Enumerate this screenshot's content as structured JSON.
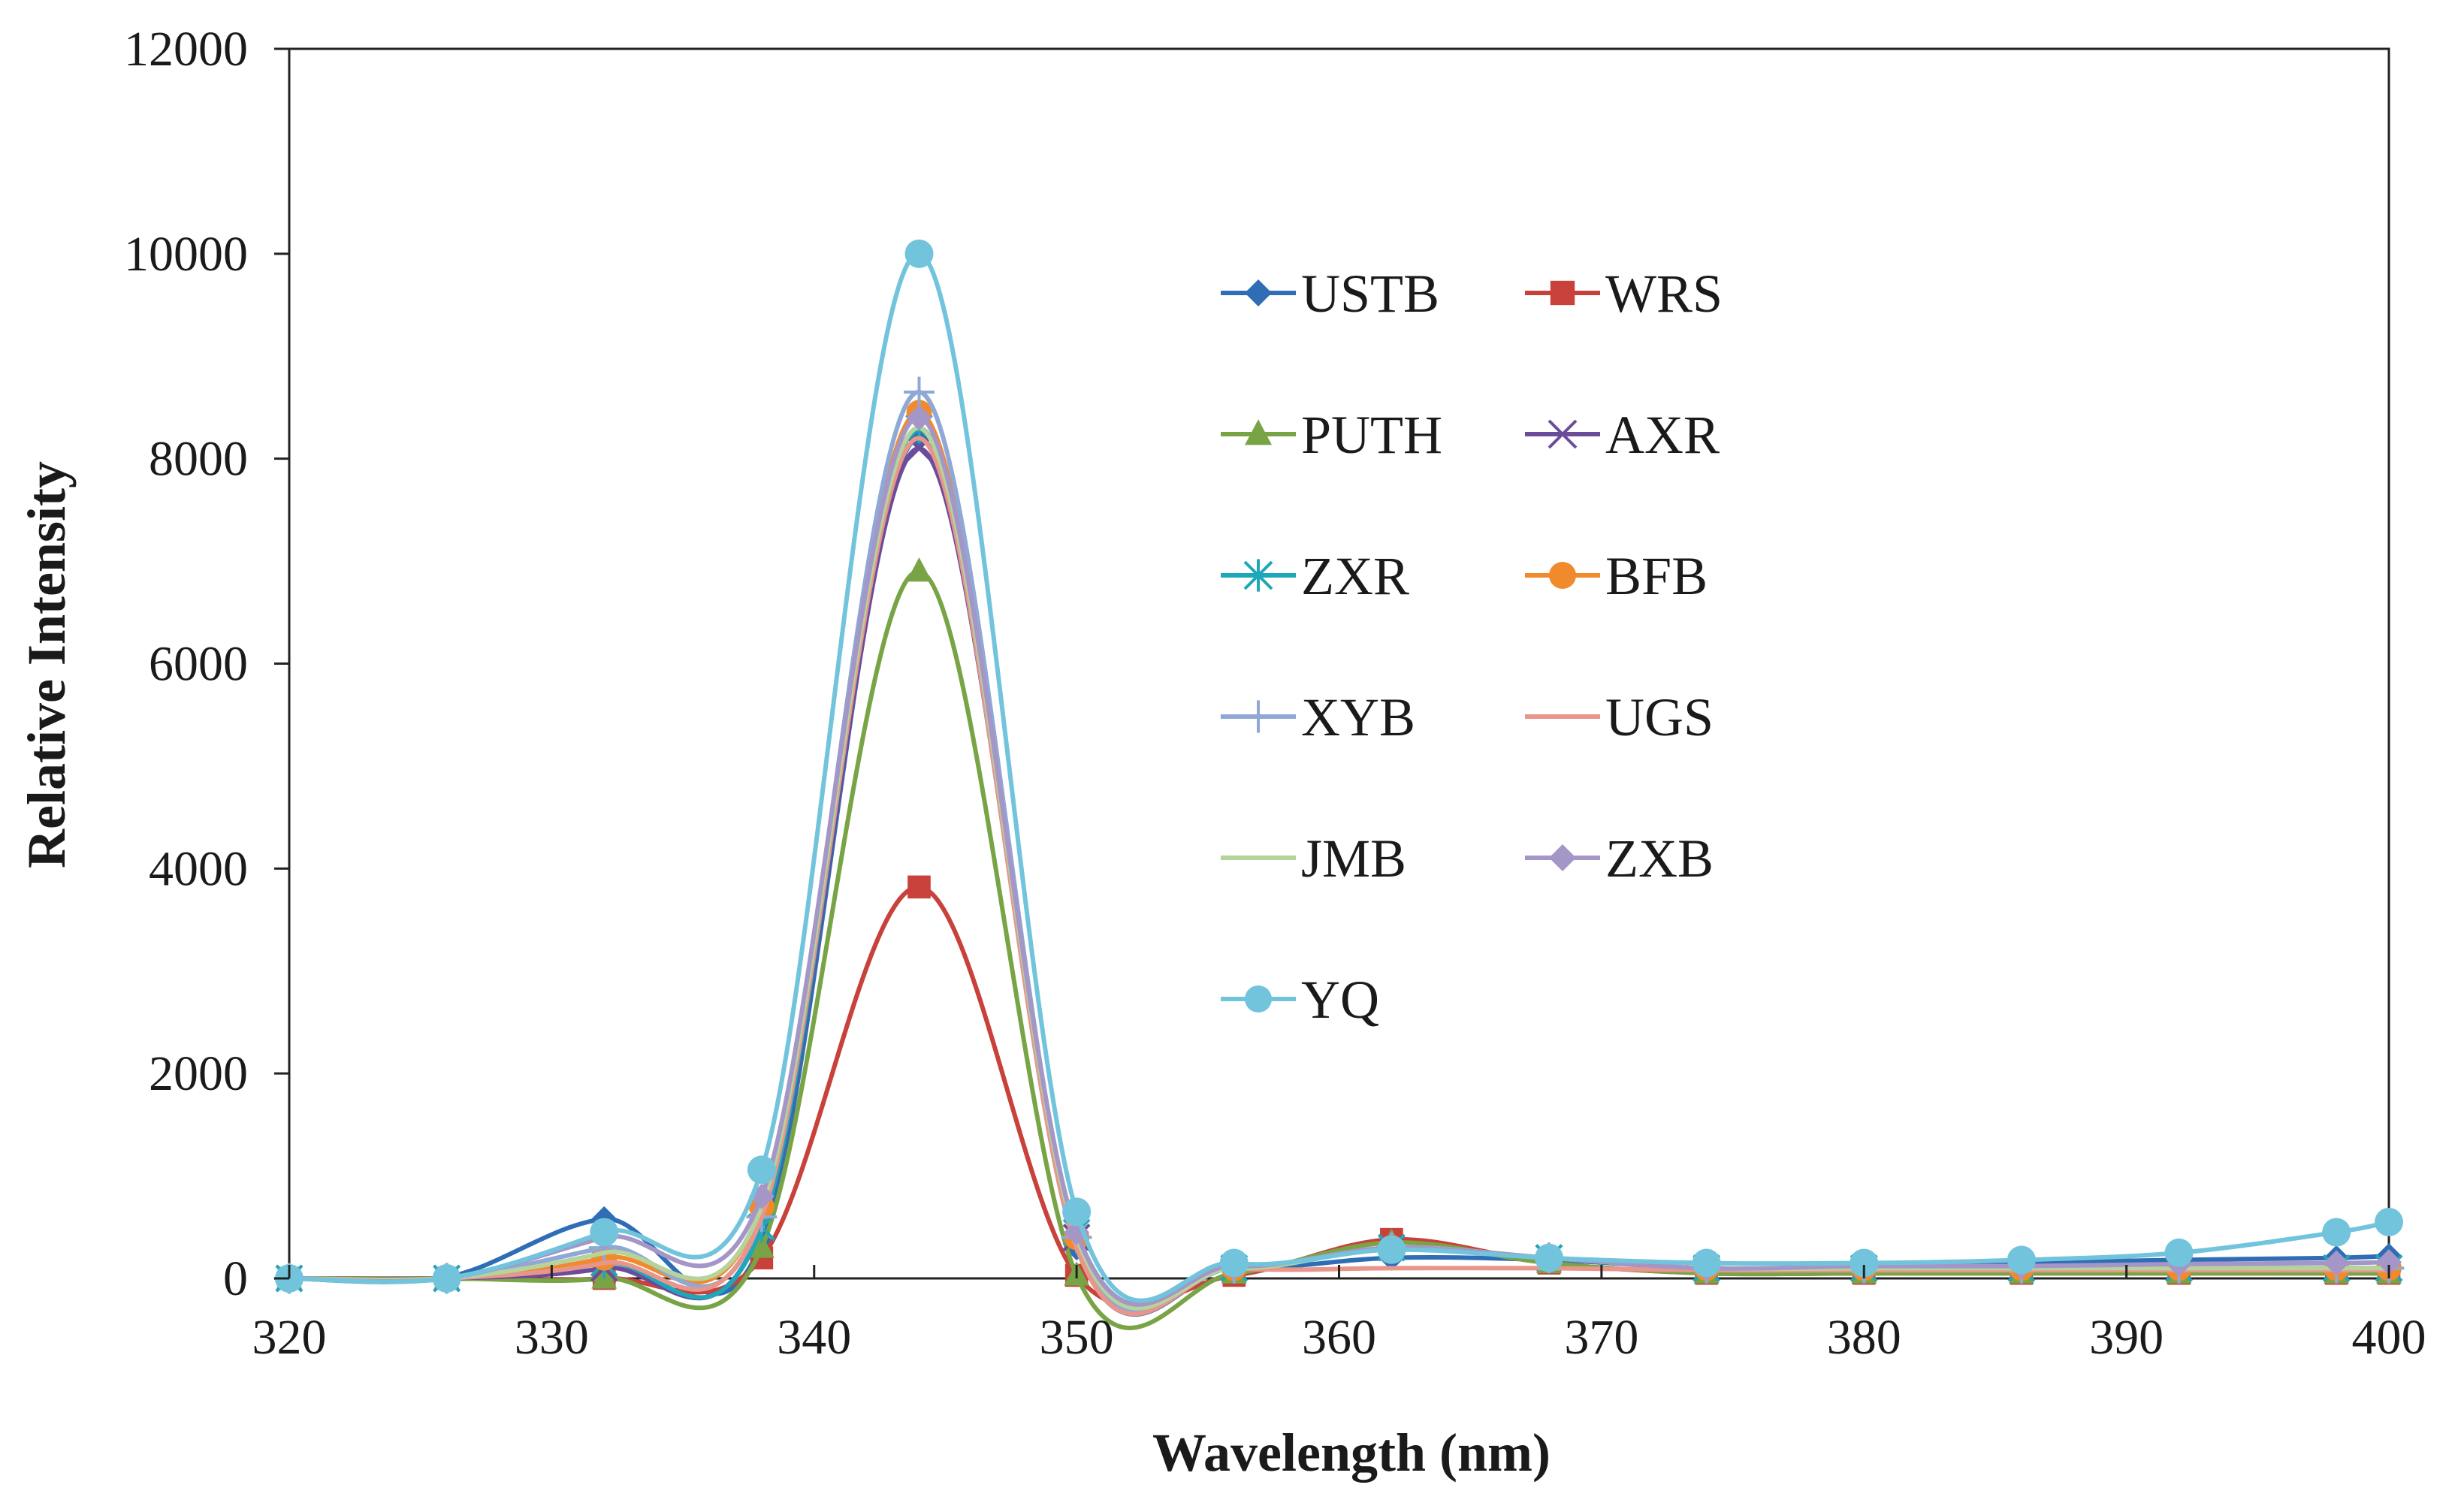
{
  "chart_data": {
    "type": "line",
    "title": "",
    "xlabel": "Wavelength (nm)",
    "ylabel": "Relative Intensity",
    "xlim": [
      320,
      400
    ],
    "ylim": [
      0,
      12000
    ],
    "x_ticks": [
      "320",
      "330",
      "340",
      "350",
      "360",
      "370",
      "380",
      "390",
      "400"
    ],
    "y_ticks": [
      "0",
      "2000",
      "4000",
      "6000",
      "8000",
      "10000",
      "12000"
    ],
    "grid": false,
    "legend_position": "inside-top-center",
    "x": [
      320,
      326,
      332,
      338,
      344,
      350,
      356,
      362,
      368,
      374,
      380,
      386,
      392,
      398,
      400
    ],
    "series": [
      {
        "name": "USTB",
        "color": "#2f6eb5",
        "marker": "diamond",
        "values": [
          0,
          10,
          580,
          350,
          8200,
          300,
          100,
          200,
          180,
          100,
          100,
          150,
          180,
          200,
          220
        ]
      },
      {
        "name": "WRS",
        "color": "#c8413b",
        "marker": "square",
        "values": [
          0,
          0,
          0,
          200,
          3820,
          30,
          30,
          380,
          150,
          50,
          50,
          50,
          50,
          50,
          50
        ]
      },
      {
        "name": "PUTH",
        "color": "#79a446",
        "marker": "triangle",
        "values": [
          0,
          0,
          0,
          300,
          6900,
          30,
          50,
          350,
          150,
          50,
          50,
          50,
          50,
          50,
          50
        ]
      },
      {
        "name": "AXR",
        "color": "#6b4c9a",
        "marker": "x",
        "values": [
          0,
          0,
          100,
          500,
          8100,
          400,
          100,
          300,
          200,
          100,
          100,
          100,
          100,
          100,
          100
        ]
      },
      {
        "name": "ZXR",
        "color": "#1ea7b8",
        "marker": "asterisk",
        "values": [
          0,
          0,
          150,
          500,
          8300,
          450,
          100,
          300,
          200,
          100,
          100,
          100,
          100,
          100,
          100
        ]
      },
      {
        "name": "BFB",
        "color": "#f08a2c",
        "marker": "circle",
        "values": [
          0,
          0,
          200,
          700,
          8450,
          400,
          100,
          300,
          200,
          100,
          100,
          100,
          100,
          100,
          100
        ]
      },
      {
        "name": "XYB",
        "color": "#8fa8d6",
        "marker": "plus",
        "values": [
          0,
          0,
          300,
          600,
          8650,
          400,
          100,
          300,
          200,
          100,
          100,
          100,
          100,
          100,
          100
        ]
      },
      {
        "name": "UGS",
        "color": "#e8958b",
        "marker": "line",
        "values": [
          0,
          0,
          150,
          600,
          8200,
          300,
          100,
          100,
          100,
          80,
          80,
          80,
          80,
          80,
          80
        ]
      },
      {
        "name": "JMB",
        "color": "#b5d39b",
        "marker": "line",
        "values": [
          0,
          0,
          250,
          700,
          8300,
          400,
          100,
          300,
          200,
          100,
          100,
          100,
          100,
          100,
          100
        ]
      },
      {
        "name": "ZXB",
        "color": "#a596c8",
        "marker": "diamond",
        "values": [
          0,
          0,
          400,
          800,
          8400,
          450,
          120,
          300,
          200,
          100,
          120,
          120,
          140,
          150,
          160
        ]
      },
      {
        "name": "YQ",
        "color": "#72c4dc",
        "marker": "circle",
        "values": [
          0,
          0,
          450,
          1060,
          10000,
          650,
          150,
          280,
          200,
          150,
          150,
          180,
          250,
          450,
          550
        ]
      }
    ]
  }
}
